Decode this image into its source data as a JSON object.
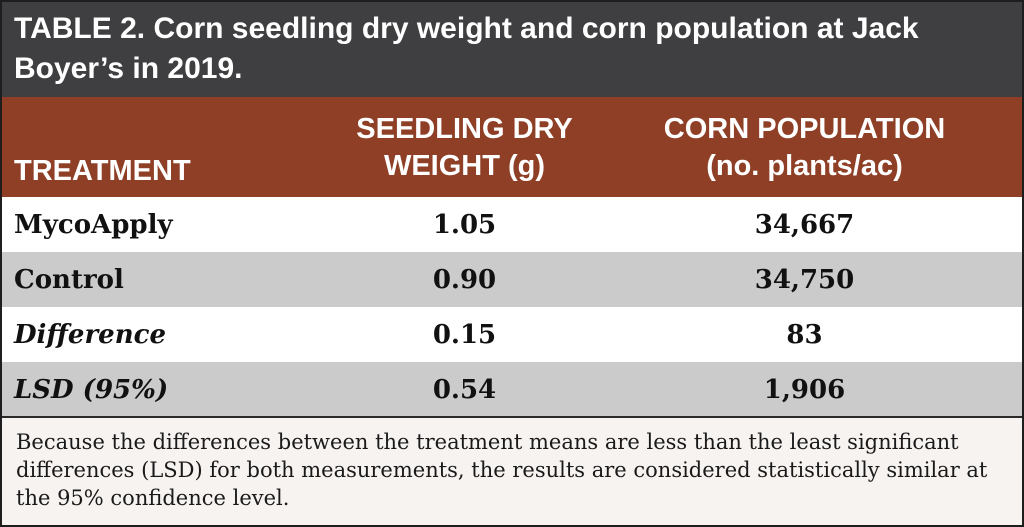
{
  "table": {
    "label": "TABLE 2.",
    "title": "Corn seedling dry weight and corn population at Jack Boyer’s in 2019.",
    "headers": {
      "treatment": "TREATMENT",
      "dry_weight_line1": "SEEDLING DRY",
      "dry_weight_line2": "WEIGHT (g)",
      "population_line1": "CORN POPULATION",
      "population_line2": "(no. plants/ac)"
    },
    "rows": [
      {
        "treatment": "MycoApply",
        "dry_weight": "1.05",
        "population": "34,667"
      },
      {
        "treatment": "Control",
        "dry_weight": "0.90",
        "population": "34,750"
      },
      {
        "treatment": "Difference",
        "dry_weight": "0.15",
        "population": "83"
      },
      {
        "treatment": "LSD (95%)",
        "dry_weight": "0.54",
        "population": "1,906"
      }
    ],
    "footnote": "Because the differences between the treatment means are less than the least significant differences (LSD) for both measurements, the results are considered statistically similar at the 95% confidence level."
  },
  "colors": {
    "title_bar": "#3f3f41",
    "header_row": "#8e3f26",
    "stripe": "#cbcbcb",
    "footnote_bg": "#f7f3f1"
  }
}
